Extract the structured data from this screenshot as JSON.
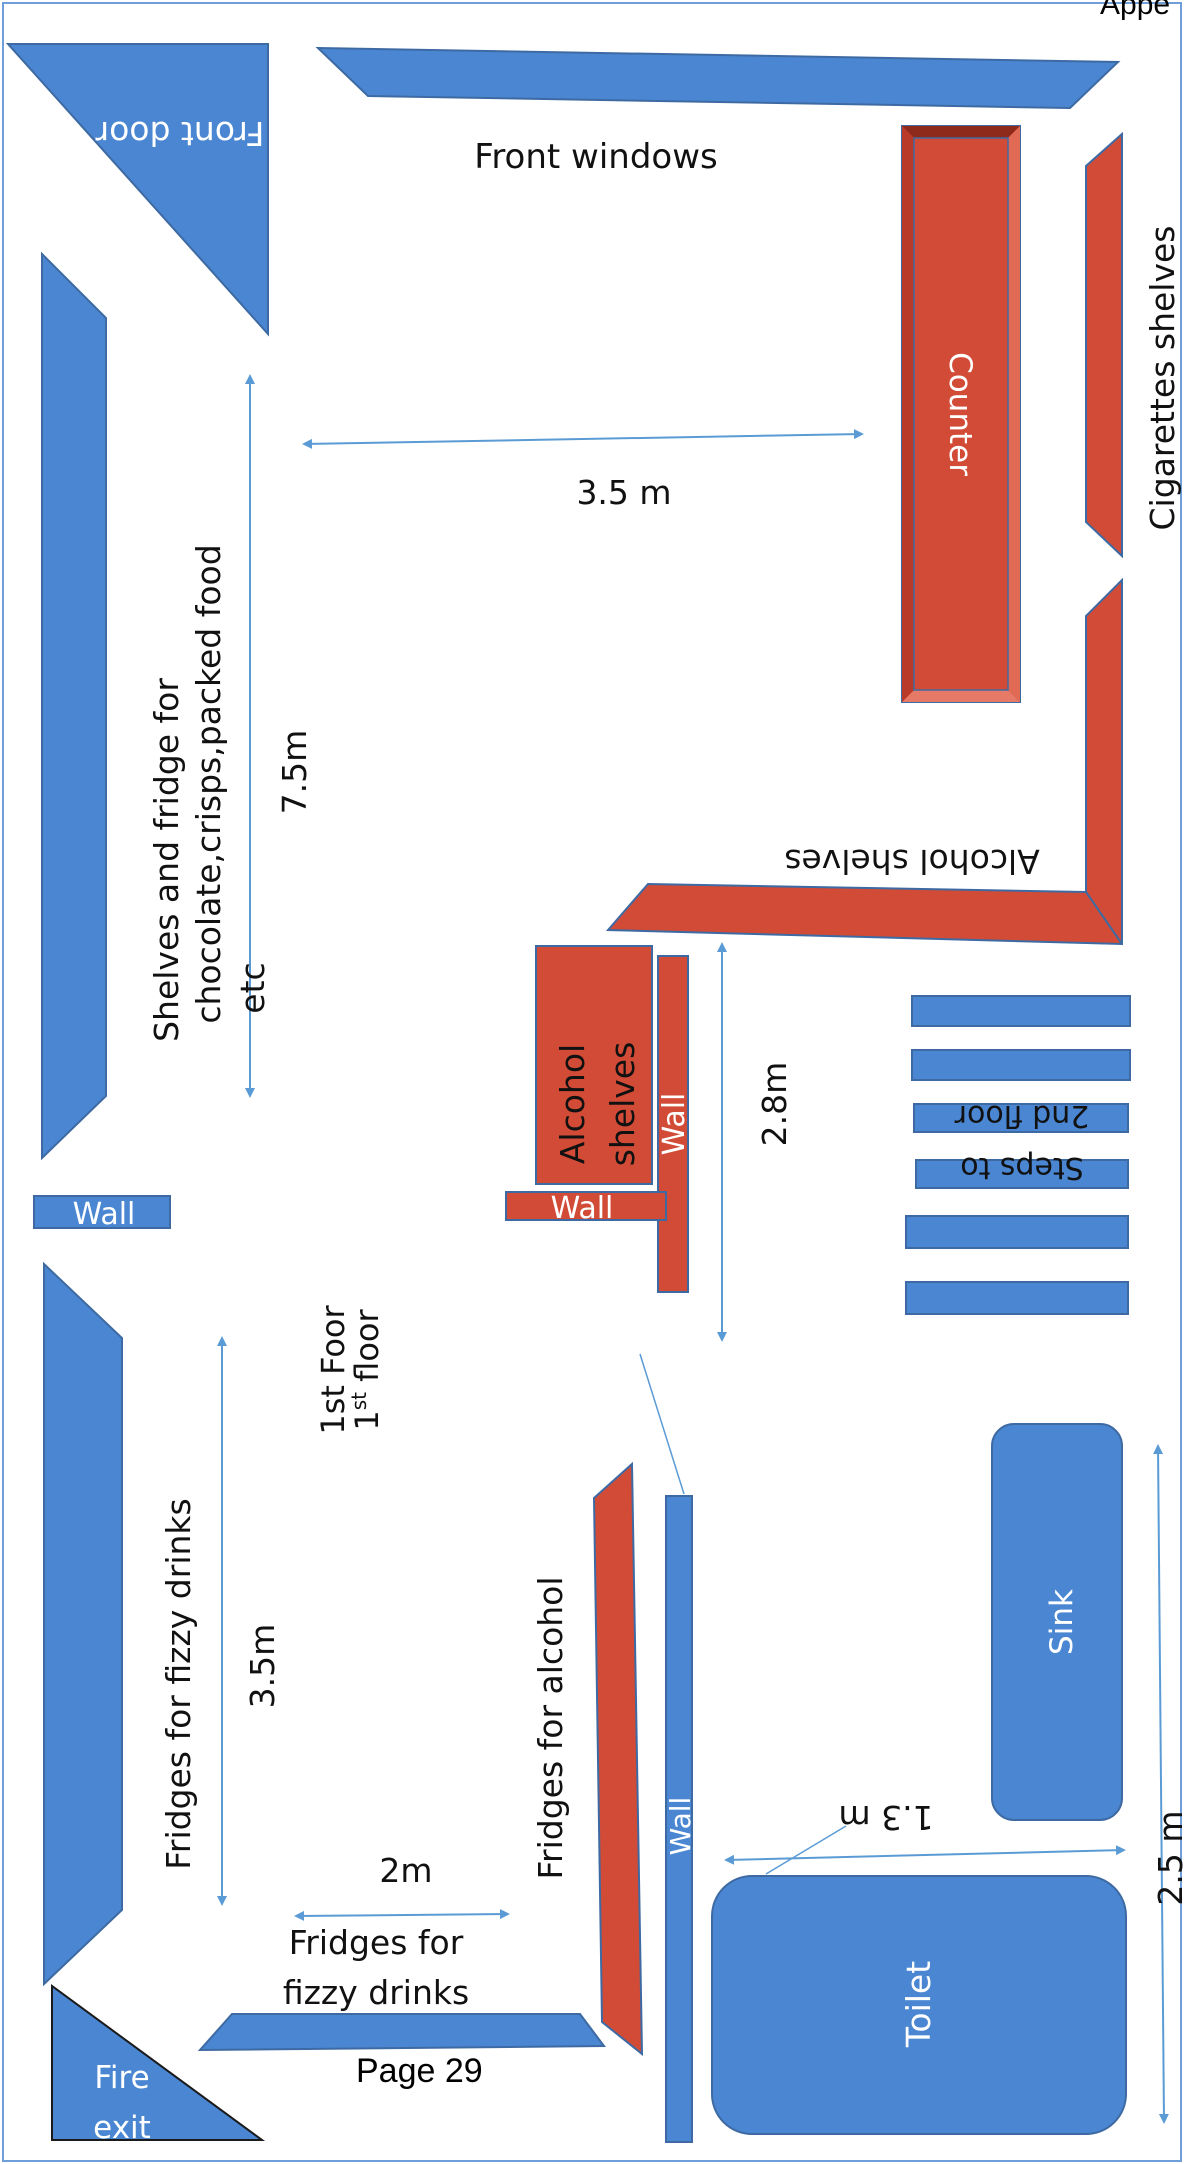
{
  "header_text": "Appe",
  "page_number": "Page 29",
  "colors": {
    "fixture_blue": "#4a86d1",
    "shelf_red": "#d24b36",
    "outline": "#3e6aa3",
    "arrow": "#5b9bd5",
    "text_dark": "#111111",
    "text_light": "#ffffff"
  },
  "labels": {
    "front_door": "Front door",
    "front_windows": "Front windows",
    "counter": "Counter",
    "cigarettes_shelves": "Cigarettes shelves",
    "shelves_fridge_line1": "Shelves and fridge for",
    "shelves_fridge_line2": "chocolate,crisps,packed food",
    "shelves_fridge_line3": "etc",
    "alcohol_shelves_top": "Alcohol shelves",
    "alcohol_shelves_block_1": "Alcohol",
    "alcohol_shelves_block_2": "shelves",
    "wall_left": "Wall",
    "wall_mid_horizontal": "Wall",
    "wall_mid_vertical": "Wall",
    "wall_lower": "Wall",
    "steps_line1": "2nd floor",
    "steps_line2": "Steps to",
    "floor_line1": "1st Foor",
    "floor_line2_main": "1",
    "floor_line2_sup": "st",
    "floor_line2_rest": " floor",
    "fridges_fizzy_left": "Fridges for fizzy drinks",
    "fridges_fizzy_bottom_1": "Fridges for",
    "fridges_fizzy_bottom_2": "fizzy drinks",
    "fridges_alcohol": "Fridges for alcohol",
    "sink": "Sink",
    "toilet": "Toilet",
    "fire_exit_1": "Fire",
    "fire_exit_2": "exit"
  },
  "dimensions": {
    "d_3_5m_top": "3.5 m",
    "d_7_5m": "7.5m",
    "d_2_8m": "2.8m",
    "d_3_5m_left": "3.5m",
    "d_2m": "2m",
    "d_1_3m": "1.3 m",
    "d_2_5m": "2.5 m"
  }
}
